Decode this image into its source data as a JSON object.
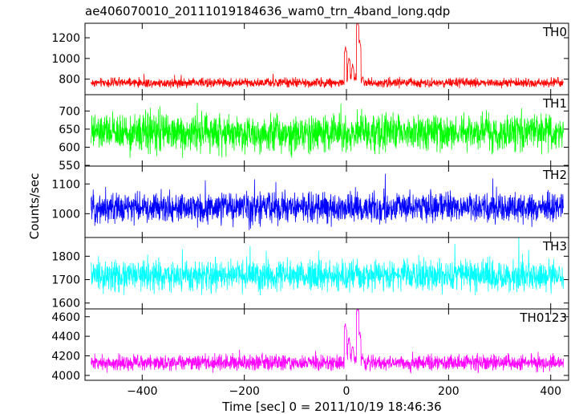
{
  "title": "ae406070010_20111019184636_wam0_trn_4band_long.qdp",
  "ylabel": "Counts/sec",
  "xlabel": "Time [sec] 0 = 2011/10/19 18:46:36",
  "chart_data": [
    {
      "type": "line",
      "name": "TH0",
      "color": "#ff0000",
      "xlim": [
        -512,
        435
      ],
      "ylim": [
        650,
        1340
      ],
      "yticks": [
        800,
        1000,
        1200
      ],
      "ytick_labels": [
        "800",
        "1000",
        "1200"
      ],
      "baseline": 765,
      "noise": 30,
      "features": [
        {
          "x": -2,
          "y": 1100
        },
        {
          "x": 5,
          "y": 980
        },
        {
          "x": 12,
          "y": 900
        },
        {
          "x": 22,
          "y": 1340
        },
        {
          "x": 26,
          "y": 1150
        },
        {
          "x": 32,
          "y": 830
        }
      ]
    },
    {
      "type": "line",
      "name": "TH1",
      "color": "#00ff00",
      "xlim": [
        -512,
        435
      ],
      "ylim": [
        548,
        745
      ],
      "yticks": [
        550,
        600,
        650,
        700
      ],
      "ytick_labels": [
        "550",
        "600",
        "650",
        "700"
      ],
      "baseline": 640,
      "noise": 35,
      "features": []
    },
    {
      "type": "line",
      "name": "TH2",
      "color": "#0000ff",
      "xlim": [
        -512,
        435
      ],
      "ylim": [
        920,
        1160
      ],
      "yticks": [
        1000,
        1100
      ],
      "ytick_labels": [
        "1000",
        "1100"
      ],
      "baseline": 1020,
      "noise": 35,
      "features": []
    },
    {
      "type": "line",
      "name": "TH3",
      "color": "#00ffff",
      "xlim": [
        -512,
        435
      ],
      "ylim": [
        1575,
        1880
      ],
      "yticks": [
        1600,
        1700,
        1800
      ],
      "ytick_labels": [
        "1600",
        "1700",
        "1800"
      ],
      "baseline": 1715,
      "noise": 45,
      "features": []
    },
    {
      "type": "line",
      "name": "TH0123",
      "color": "#ff00ff",
      "xlim": [
        -512,
        435
      ],
      "ylim": [
        3950,
        4680
      ],
      "yticks": [
        4000,
        4200,
        4400,
        4600
      ],
      "ytick_labels": [
        "4000",
        "4200",
        "4400",
        "4600"
      ],
      "baseline": 4130,
      "noise": 55,
      "features": [
        {
          "x": -2,
          "y": 4520
        },
        {
          "x": 5,
          "y": 4360
        },
        {
          "x": 12,
          "y": 4250
        },
        {
          "x": 22,
          "y": 4680
        },
        {
          "x": 26,
          "y": 4420
        },
        {
          "x": 32,
          "y": 4180
        }
      ]
    }
  ],
  "xaxis": {
    "ticks": [
      -400,
      -200,
      0,
      200,
      400
    ],
    "tick_labels": [
      "−400",
      "−200",
      "0",
      "200",
      "400"
    ]
  }
}
